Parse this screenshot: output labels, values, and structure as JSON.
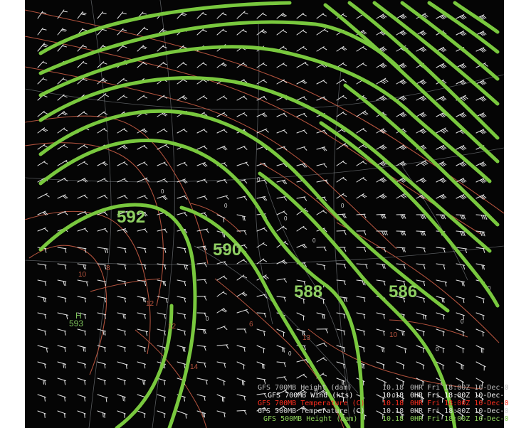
{
  "map": {
    "background": "#050505",
    "contour_color": "#79c83e",
    "temp_color": "#b8553f",
    "wind_color": "#f1f1f1",
    "height_labels": [
      "592",
      "590",
      "588",
      "586"
    ],
    "high_label": "H",
    "high_value": "593",
    "temp_labels": [
      "10",
      "8",
      "12",
      "12",
      "6",
      "14",
      "13",
      "10"
    ],
    "wind_counts_hint": "many"
  },
  "legend": {
    "rows": [
      {
        "label": "GFS 700MB Height (dam)",
        "value": "10.18",
        "time": "0HR Fri 18:00Z 10-Dec-0",
        "color": "#bdbdbd"
      },
      {
        "label": "GFS 700MB Wind (kts)",
        "value": "10.18",
        "time": "0HR Fri 18:00Z 10-Dec-0",
        "color": "#ffffff"
      },
      {
        "label": "GFS 700MB Temperature (C)",
        "value": "10.18",
        "time": "0HR Fri 18:00Z 10-Dec-0",
        "color": "#ff2e1f"
      },
      {
        "label": "GFS 500MB Temperature (C)",
        "value": "10.18",
        "time": "0HR Fri 18:00Z 10-Dec-0",
        "color": "#d6d6d6"
      },
      {
        "label": "GFS 500MB Height (dam)",
        "value": "10.18",
        "time": "0HR Fri 18:00Z 10-Dec-0",
        "color": "#8ed35b"
      }
    ]
  }
}
